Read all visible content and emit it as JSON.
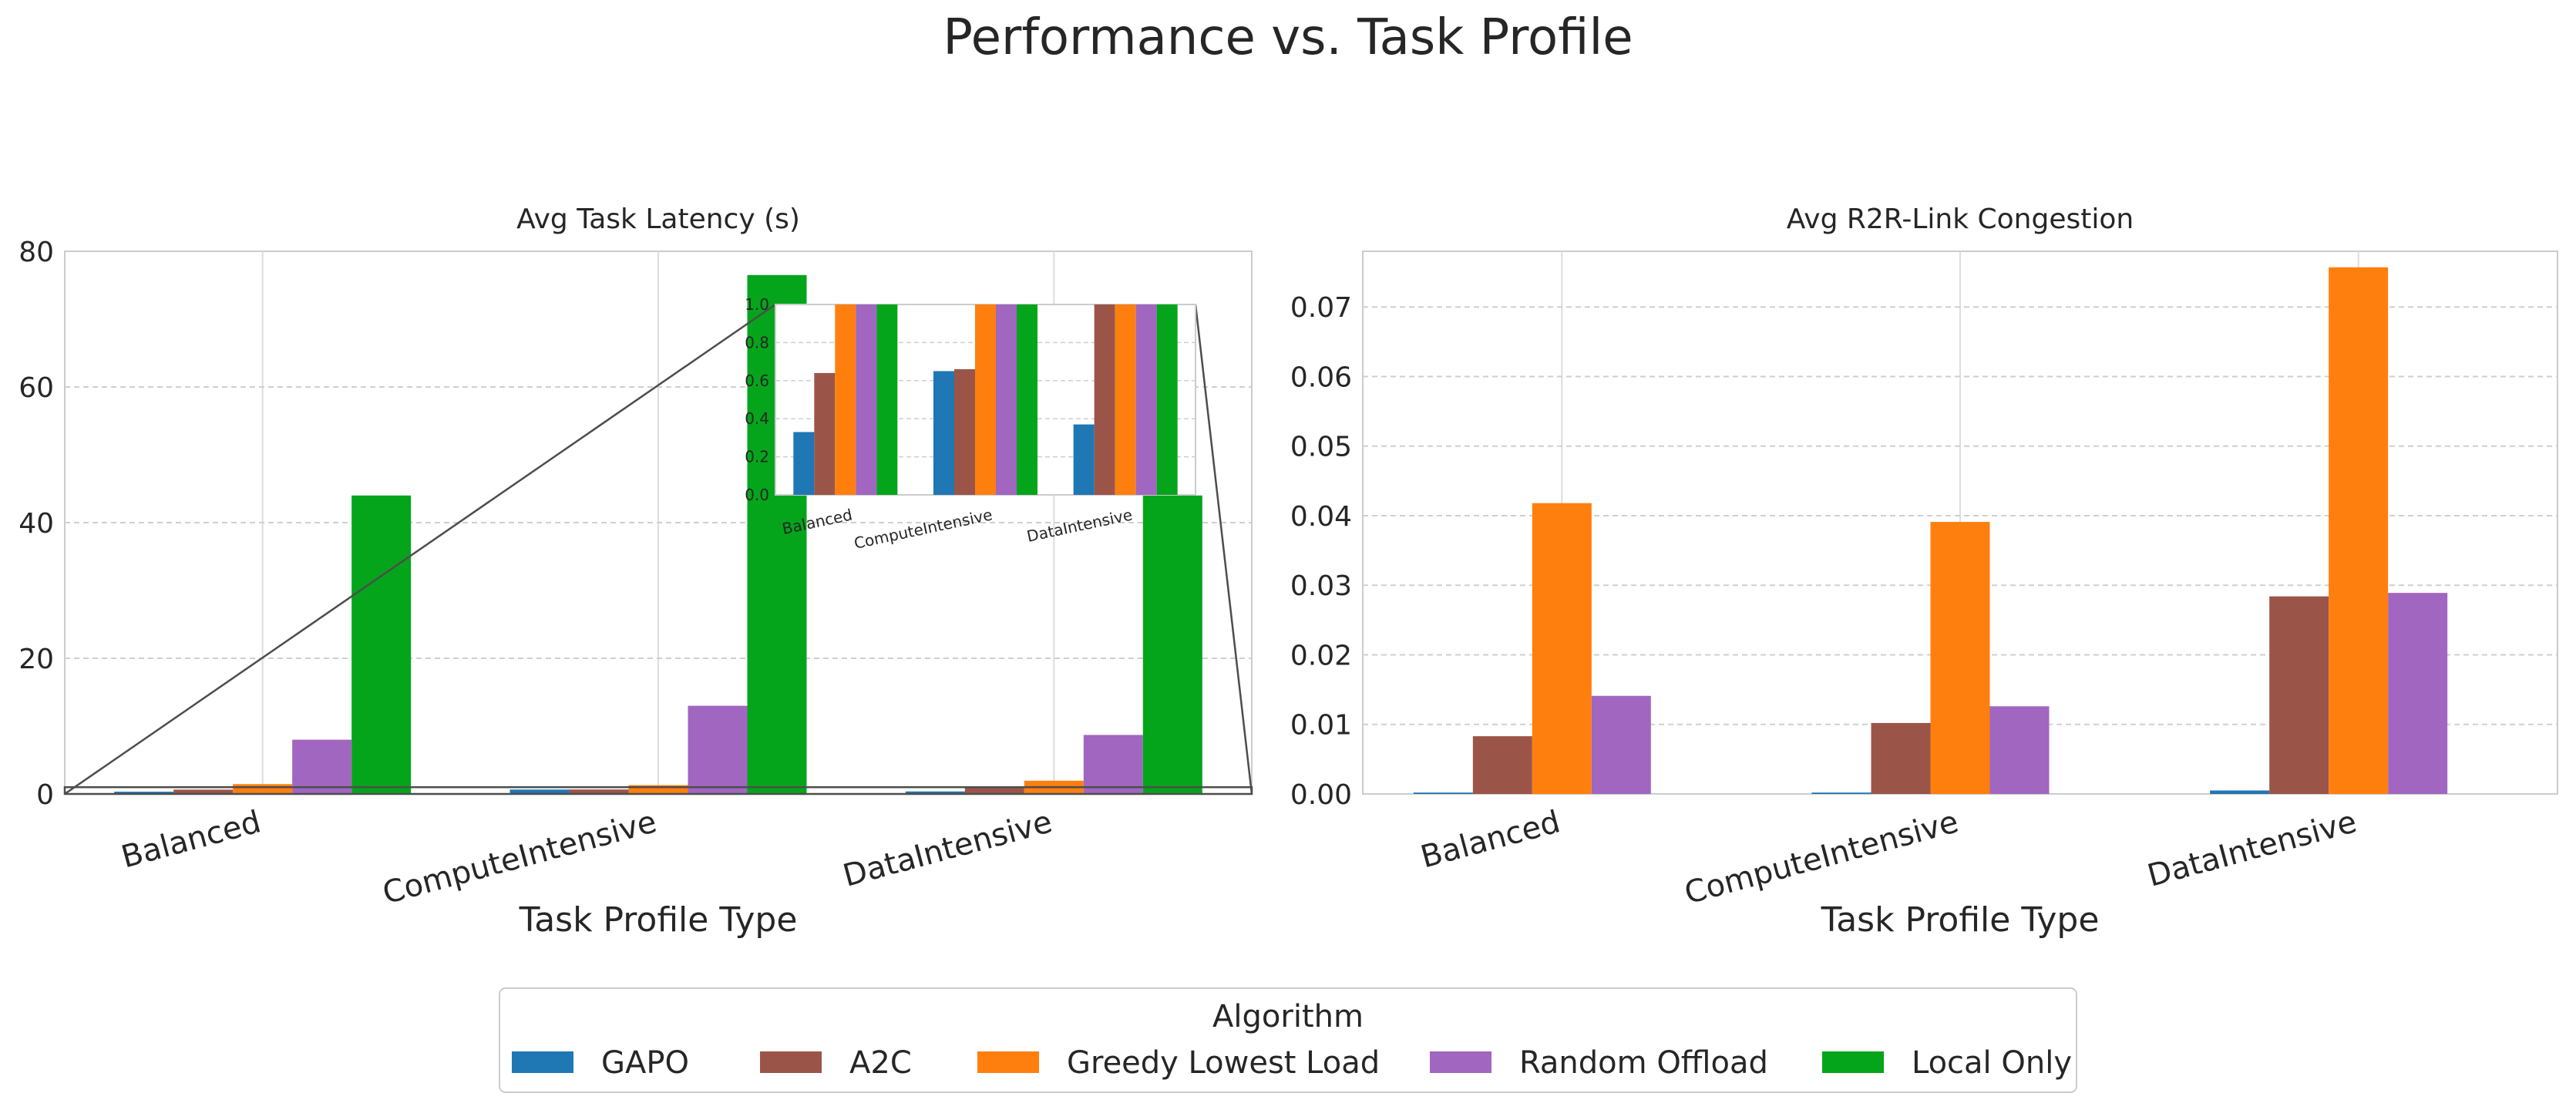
{
  "figure_title": "Performance vs. Task Profile",
  "colors": {
    "GAPO": "#1f77b4",
    "A2C": "#9b5548",
    "Greedy Lowest Load": "#ff7f0e",
    "Random Offload": "#a066c0",
    "Local Only": "#04a51b"
  },
  "chart_data": [
    {
      "type": "bar",
      "title": "Avg Task Latency (s)",
      "xlabel": "Task Profile Type",
      "ylabel": "",
      "categories": [
        "Balanced",
        "ComputeIntensive",
        "DataIntensive"
      ],
      "ylim": [
        0,
        80
      ],
      "yticks": [
        "0",
        "20",
        "40",
        "60",
        "80"
      ],
      "series": [
        {
          "name": "GAPO",
          "values": [
            0.33,
            0.65,
            0.37
          ]
        },
        {
          "name": "A2C",
          "values": [
            0.64,
            0.66,
            1.0
          ]
        },
        {
          "name": "Greedy Lowest Load",
          "values": [
            1.45,
            1.3,
            1.95
          ]
        },
        {
          "name": "Random Offload",
          "values": [
            8.0,
            13.0,
            8.7
          ]
        },
        {
          "name": "Local Only",
          "values": [
            44.0,
            76.5,
            44.0
          ]
        }
      ],
      "inset": {
        "ylim": [
          0,
          1.0
        ],
        "yticks": [
          "0.0",
          "0.2",
          "0.4",
          "0.6",
          "0.8",
          "1.0"
        ],
        "categories": [
          "Balanced",
          "ComputeIntensive",
          "DataIntensive"
        ]
      }
    },
    {
      "type": "bar",
      "title": "Avg R2R-Link Congestion",
      "xlabel": "Task Profile Type",
      "ylabel": "",
      "categories": [
        "Balanced",
        "ComputeIntensive",
        "DataIntensive"
      ],
      "ylim": [
        0,
        0.078
      ],
      "yticks": [
        "0.00",
        "0.01",
        "0.02",
        "0.03",
        "0.04",
        "0.05",
        "0.06",
        "0.07"
      ],
      "series": [
        {
          "name": "GAPO",
          "values": [
            0.0002,
            0.0002,
            0.0005
          ]
        },
        {
          "name": "A2C",
          "values": [
            0.0083,
            0.0102,
            0.0284
          ]
        },
        {
          "name": "Greedy Lowest Load",
          "values": [
            0.0418,
            0.0391,
            0.0757
          ]
        },
        {
          "name": "Random Offload",
          "values": [
            0.0141,
            0.0126,
            0.0289
          ]
        },
        {
          "name": "Local Only",
          "values": [
            0,
            0,
            0
          ]
        }
      ]
    }
  ],
  "legend": {
    "title": "Algorithm",
    "location": "bottom-center",
    "items": [
      "GAPO",
      "A2C",
      "Greedy Lowest Load",
      "Random Offload",
      "Local Only"
    ]
  }
}
